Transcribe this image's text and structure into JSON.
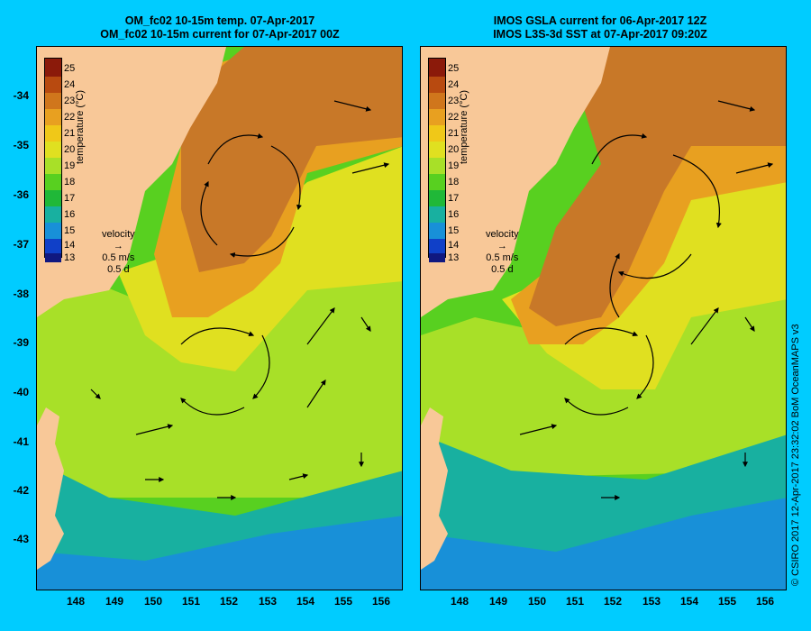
{
  "left_title": {
    "line1": "OM_fc02 10-15m temp. 07-Apr-2017",
    "line2": "OM_fc02 10-15m current for 07-Apr-2017 00Z"
  },
  "right_title": {
    "line1": "IMOS GSLA current for 06-Apr-2017 12Z",
    "line2": "IMOS L3S-3d SST at 07-Apr-2017 09:20Z"
  },
  "colorbar": {
    "label": "temperature (°C)",
    "ticks": [
      "25",
      "24",
      "23",
      "22",
      "21",
      "20",
      "19",
      "18",
      "17",
      "16",
      "15",
      "14",
      "13"
    ],
    "colors": [
      "#8b1a0a",
      "#b84a10",
      "#d0761c",
      "#e8a020",
      "#f0c818",
      "#e0e020",
      "#a8e028",
      "#58d020",
      "#20b838",
      "#18b0a0",
      "#1890d8",
      "#1040c8",
      "#101880"
    ]
  },
  "velocity_legend": {
    "title": "velocity",
    "speed": "0.5 m/s",
    "duration": "0.5 d"
  },
  "x_axis": {
    "ticks": [
      "148",
      "149",
      "150",
      "151",
      "152",
      "153",
      "154",
      "155",
      "156"
    ]
  },
  "y_axis": {
    "ticks": [
      "-34",
      "-35",
      "-36",
      "-37",
      "-38",
      "-39",
      "-40",
      "-41",
      "-42",
      "-43"
    ]
  },
  "copyright": "© CSIRO 2017  12-Apr-2017 23:32:02 BoM OceanMAPS v3",
  "colors": {
    "background": "#00ccff",
    "land": "#f8c898",
    "warm_core": "#c87828",
    "warm_edge": "#e8a020",
    "mid": "#e0e020",
    "green": "#58d020",
    "cool": "#18b0a0",
    "cold": "#1890d8"
  }
}
